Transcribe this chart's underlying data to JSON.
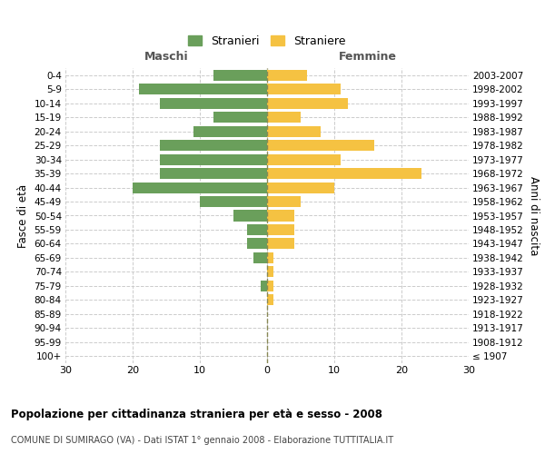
{
  "age_groups": [
    "100+",
    "95-99",
    "90-94",
    "85-89",
    "80-84",
    "75-79",
    "70-74",
    "65-69",
    "60-64",
    "55-59",
    "50-54",
    "45-49",
    "40-44",
    "35-39",
    "30-34",
    "25-29",
    "20-24",
    "15-19",
    "10-14",
    "5-9",
    "0-4"
  ],
  "birth_years": [
    "≤ 1907",
    "1908-1912",
    "1913-1917",
    "1918-1922",
    "1923-1927",
    "1928-1932",
    "1933-1937",
    "1938-1942",
    "1943-1947",
    "1948-1952",
    "1953-1957",
    "1958-1962",
    "1963-1967",
    "1968-1972",
    "1973-1977",
    "1978-1982",
    "1983-1987",
    "1988-1992",
    "1993-1997",
    "1998-2002",
    "2003-2007"
  ],
  "maschi": [
    0,
    0,
    0,
    0,
    0,
    1,
    0,
    2,
    3,
    3,
    5,
    10,
    20,
    16,
    16,
    16,
    11,
    8,
    16,
    19,
    8
  ],
  "femmine": [
    0,
    0,
    0,
    0,
    1,
    1,
    1,
    1,
    4,
    4,
    4,
    5,
    10,
    23,
    11,
    16,
    8,
    5,
    12,
    11,
    6
  ],
  "color_maschi": "#6a9f5b",
  "color_femmine": "#f5c242",
  "title": "Popolazione per cittadinanza straniera per età e sesso - 2008",
  "subtitle": "COMUNE DI SUMIRAGO (VA) - Dati ISTAT 1° gennaio 2008 - Elaborazione TUTTITALIA.IT",
  "ylabel_left": "Fasce di età",
  "ylabel_right": "Anni di nascita",
  "xlabel_left": "Maschi",
  "xlabel_right": "Femmine",
  "legend_maschi": "Stranieri",
  "legend_femmine": "Straniere",
  "xlim": 30,
  "background_color": "#ffffff",
  "grid_color": "#cccccc",
  "center_line_color": "#888855"
}
